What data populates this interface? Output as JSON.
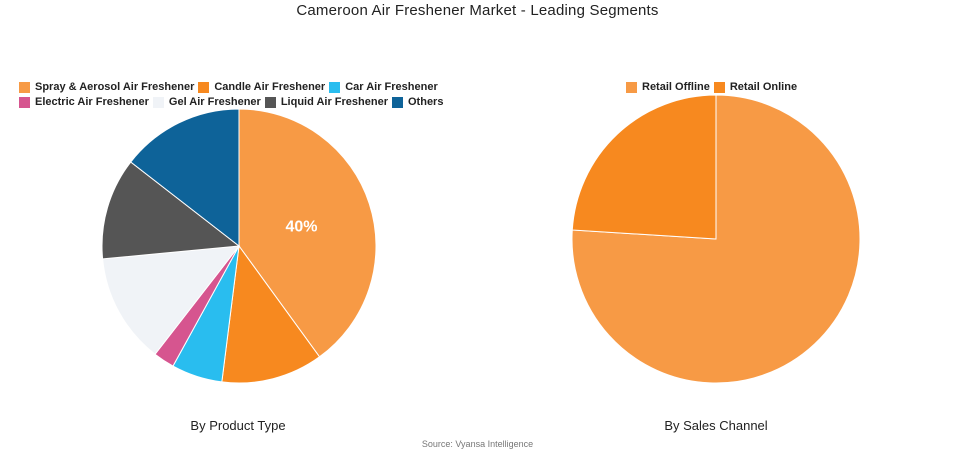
{
  "title": "Cameroon Air Freshener Market - Leading Segments",
  "source": "Source: Vyansa Intelligence",
  "chart_data": [
    {
      "type": "pie",
      "subtitle": "By Product Type",
      "legend_position": "top",
      "slices": [
        {
          "label": "Spray & Aerosol Air Freshener",
          "value": 40,
          "color": "#f79a45",
          "data_label": "40%"
        },
        {
          "label": "Candle Air Freshener",
          "value": 12,
          "color": "#f7891f",
          "data_label": ""
        },
        {
          "label": "Car Air Freshener",
          "value": 6,
          "color": "#29bdef",
          "data_label": ""
        },
        {
          "label": "Electric Air Freshener",
          "value": 2.5,
          "color": "#d6558f",
          "data_label": ""
        },
        {
          "label": "Gel Air Freshener",
          "value": 13,
          "color": "#f0f3f7",
          "data_label": ""
        },
        {
          "label": "Liquid Air Freshener",
          "value": 12,
          "color": "#555555",
          "data_label": ""
        },
        {
          "label": "Others",
          "value": 14.5,
          "color": "#0e6399",
          "data_label": ""
        }
      ]
    },
    {
      "type": "pie",
      "subtitle": "By Sales Channel",
      "legend_position": "top",
      "slices": [
        {
          "label": "Retail Offline",
          "value": 76,
          "color": "#f79a45",
          "data_label": ""
        },
        {
          "label": "Retail Online",
          "value": 24,
          "color": "#f7891f",
          "data_label": ""
        }
      ]
    }
  ]
}
